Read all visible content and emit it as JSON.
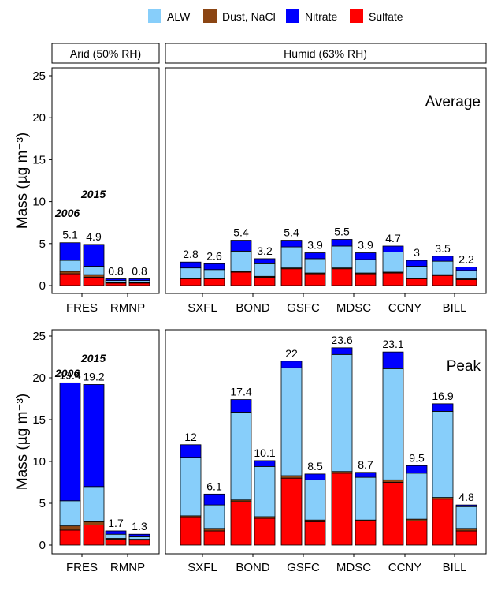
{
  "legend": [
    {
      "label": "ALW",
      "color": "#87CEFA"
    },
    {
      "label": "Dust, NaCl",
      "color": "#8B4513"
    },
    {
      "label": "Nitrate",
      "color": "#0000FF"
    },
    {
      "label": "Sulfate",
      "color": "#FF0000"
    }
  ],
  "chart_data": [
    {
      "type": "bar",
      "stacked": true,
      "title": "Average",
      "ylabel": "Mass (µg m⁻³)",
      "ylim": [
        0,
        27
      ],
      "yticks": [
        0,
        5,
        10,
        15,
        20,
        25
      ],
      "facets": [
        "Arid (50% RH)",
        "Humid (63% RH)"
      ],
      "sites": [
        {
          "name": "FRES",
          "facet": 0
        },
        {
          "name": "RMNP",
          "facet": 0
        },
        {
          "name": "SXFL",
          "facet": 1
        },
        {
          "name": "BOND",
          "facet": 1
        },
        {
          "name": "GSFC",
          "facet": 1
        },
        {
          "name": "MDSC",
          "facet": 1
        },
        {
          "name": "CCNY",
          "facet": 1
        },
        {
          "name": "BILL",
          "facet": 1
        }
      ],
      "year_labels": [
        "2006",
        "2015"
      ],
      "bars": [
        {
          "site": "FRES",
          "year": "2006",
          "sulfate": 1.4,
          "dust": 0.3,
          "alw": 1.3,
          "nitrate": 2.1,
          "total": "5.1"
        },
        {
          "site": "FRES",
          "year": "2015",
          "sulfate": 1.0,
          "dust": 0.3,
          "alw": 1.0,
          "nitrate": 2.6,
          "total": "4.9"
        },
        {
          "site": "RMNP",
          "year": "2006",
          "sulfate": 0.3,
          "dust": 0.05,
          "alw": 0.25,
          "nitrate": 0.2,
          "total": "0.8"
        },
        {
          "site": "RMNP",
          "year": "2015",
          "sulfate": 0.3,
          "dust": 0.05,
          "alw": 0.25,
          "nitrate": 0.2,
          "total": "0.8"
        },
        {
          "site": "SXFL",
          "year": "2006",
          "sulfate": 0.8,
          "dust": 0.1,
          "alw": 1.2,
          "nitrate": 0.7,
          "total": "2.8"
        },
        {
          "site": "SXFL",
          "year": "2015",
          "sulfate": 0.8,
          "dust": 0.1,
          "alw": 1.0,
          "nitrate": 0.7,
          "total": "2.6"
        },
        {
          "site": "BOND",
          "year": "2006",
          "sulfate": 1.6,
          "dust": 0.1,
          "alw": 2.4,
          "nitrate": 1.3,
          "total": "5.4"
        },
        {
          "site": "BOND",
          "year": "2015",
          "sulfate": 1.0,
          "dust": 0.1,
          "alw": 1.5,
          "nitrate": 0.6,
          "total": "3.2"
        },
        {
          "site": "GSFC",
          "year": "2006",
          "sulfate": 2.0,
          "dust": 0.1,
          "alw": 2.5,
          "nitrate": 0.8,
          "total": "5.4"
        },
        {
          "site": "GSFC",
          "year": "2015",
          "sulfate": 1.4,
          "dust": 0.1,
          "alw": 1.7,
          "nitrate": 0.7,
          "total": "3.9"
        },
        {
          "site": "MDSC",
          "year": "2006",
          "sulfate": 2.0,
          "dust": 0.1,
          "alw": 2.6,
          "nitrate": 0.8,
          "total": "5.5"
        },
        {
          "site": "MDSC",
          "year": "2015",
          "sulfate": 1.4,
          "dust": 0.1,
          "alw": 1.6,
          "nitrate": 0.8,
          "total": "3.9"
        },
        {
          "site": "CCNY",
          "year": "2006",
          "sulfate": 1.5,
          "dust": 0.1,
          "alw": 2.4,
          "nitrate": 0.7,
          "total": "4.7"
        },
        {
          "site": "CCNY",
          "year": "2015",
          "sulfate": 0.8,
          "dust": 0.1,
          "alw": 1.4,
          "nitrate": 0.7,
          "total": "3"
        },
        {
          "site": "BILL",
          "year": "2006",
          "sulfate": 1.2,
          "dust": 0.1,
          "alw": 1.6,
          "nitrate": 0.6,
          "total": "3.5"
        },
        {
          "site": "BILL",
          "year": "2015",
          "sulfate": 0.7,
          "dust": 0.1,
          "alw": 1.0,
          "nitrate": 0.4,
          "total": "2.2"
        }
      ]
    },
    {
      "type": "bar",
      "stacked": true,
      "title": "Peak",
      "ylabel": "Mass (µg m⁻³)",
      "ylim": [
        0,
        27
      ],
      "yticks": [
        0,
        5,
        10,
        15,
        20,
        25
      ],
      "sites": [
        {
          "name": "FRES",
          "facet": 0
        },
        {
          "name": "RMNP",
          "facet": 0
        },
        {
          "name": "SXFL",
          "facet": 1
        },
        {
          "name": "BOND",
          "facet": 1
        },
        {
          "name": "GSFC",
          "facet": 1
        },
        {
          "name": "MDSC",
          "facet": 1
        },
        {
          "name": "CCNY",
          "facet": 1
        },
        {
          "name": "BILL",
          "facet": 1
        }
      ],
      "year_labels": [
        "2006",
        "2015"
      ],
      "bars": [
        {
          "site": "FRES",
          "year": "2006",
          "sulfate": 1.8,
          "dust": 0.5,
          "alw": 3.0,
          "nitrate": 14.1,
          "total": "19.4"
        },
        {
          "site": "FRES",
          "year": "2015",
          "sulfate": 2.4,
          "dust": 0.4,
          "alw": 4.2,
          "nitrate": 12.2,
          "total": "19.2"
        },
        {
          "site": "RMNP",
          "year": "2006",
          "sulfate": 0.7,
          "dust": 0.1,
          "alw": 0.5,
          "nitrate": 0.4,
          "total": "1.7"
        },
        {
          "site": "RMNP",
          "year": "2015",
          "sulfate": 0.6,
          "dust": 0.1,
          "alw": 0.3,
          "nitrate": 0.3,
          "total": "1.3"
        },
        {
          "site": "SXFL",
          "year": "2006",
          "sulfate": 3.3,
          "dust": 0.2,
          "alw": 7.0,
          "nitrate": 1.5,
          "total": "12"
        },
        {
          "site": "SXFL",
          "year": "2015",
          "sulfate": 1.7,
          "dust": 0.3,
          "alw": 2.8,
          "nitrate": 1.3,
          "total": "6.1"
        },
        {
          "site": "BOND",
          "year": "2006",
          "sulfate": 5.2,
          "dust": 0.2,
          "alw": 10.5,
          "nitrate": 1.5,
          "total": "17.4"
        },
        {
          "site": "BOND",
          "year": "2015",
          "sulfate": 3.2,
          "dust": 0.2,
          "alw": 6.0,
          "nitrate": 0.7,
          "total": "10.1"
        },
        {
          "site": "GSFC",
          "year": "2006",
          "sulfate": 8.0,
          "dust": 0.3,
          "alw": 12.9,
          "nitrate": 0.8,
          "total": "22"
        },
        {
          "site": "GSFC",
          "year": "2015",
          "sulfate": 2.8,
          "dust": 0.2,
          "alw": 4.8,
          "nitrate": 0.7,
          "total": "8.5"
        },
        {
          "site": "MDSC",
          "year": "2006",
          "sulfate": 8.6,
          "dust": 0.2,
          "alw": 14.0,
          "nitrate": 0.8,
          "total": "23.6"
        },
        {
          "site": "MDSC",
          "year": "2015",
          "sulfate": 2.9,
          "dust": 0.1,
          "alw": 5.1,
          "nitrate": 0.6,
          "total": "8.7"
        },
        {
          "site": "CCNY",
          "year": "2006",
          "sulfate": 7.5,
          "dust": 0.3,
          "alw": 13.3,
          "nitrate": 2.0,
          "total": "23.1"
        },
        {
          "site": "CCNY",
          "year": "2015",
          "sulfate": 2.9,
          "dust": 0.2,
          "alw": 5.5,
          "nitrate": 0.9,
          "total": "9.5"
        },
        {
          "site": "BILL",
          "year": "2006",
          "sulfate": 5.5,
          "dust": 0.2,
          "alw": 10.3,
          "nitrate": 0.9,
          "total": "16.9"
        },
        {
          "site": "BILL",
          "year": "2015",
          "sulfate": 1.7,
          "dust": 0.3,
          "alw": 2.6,
          "nitrate": 0.2,
          "total": "4.8"
        }
      ]
    }
  ]
}
